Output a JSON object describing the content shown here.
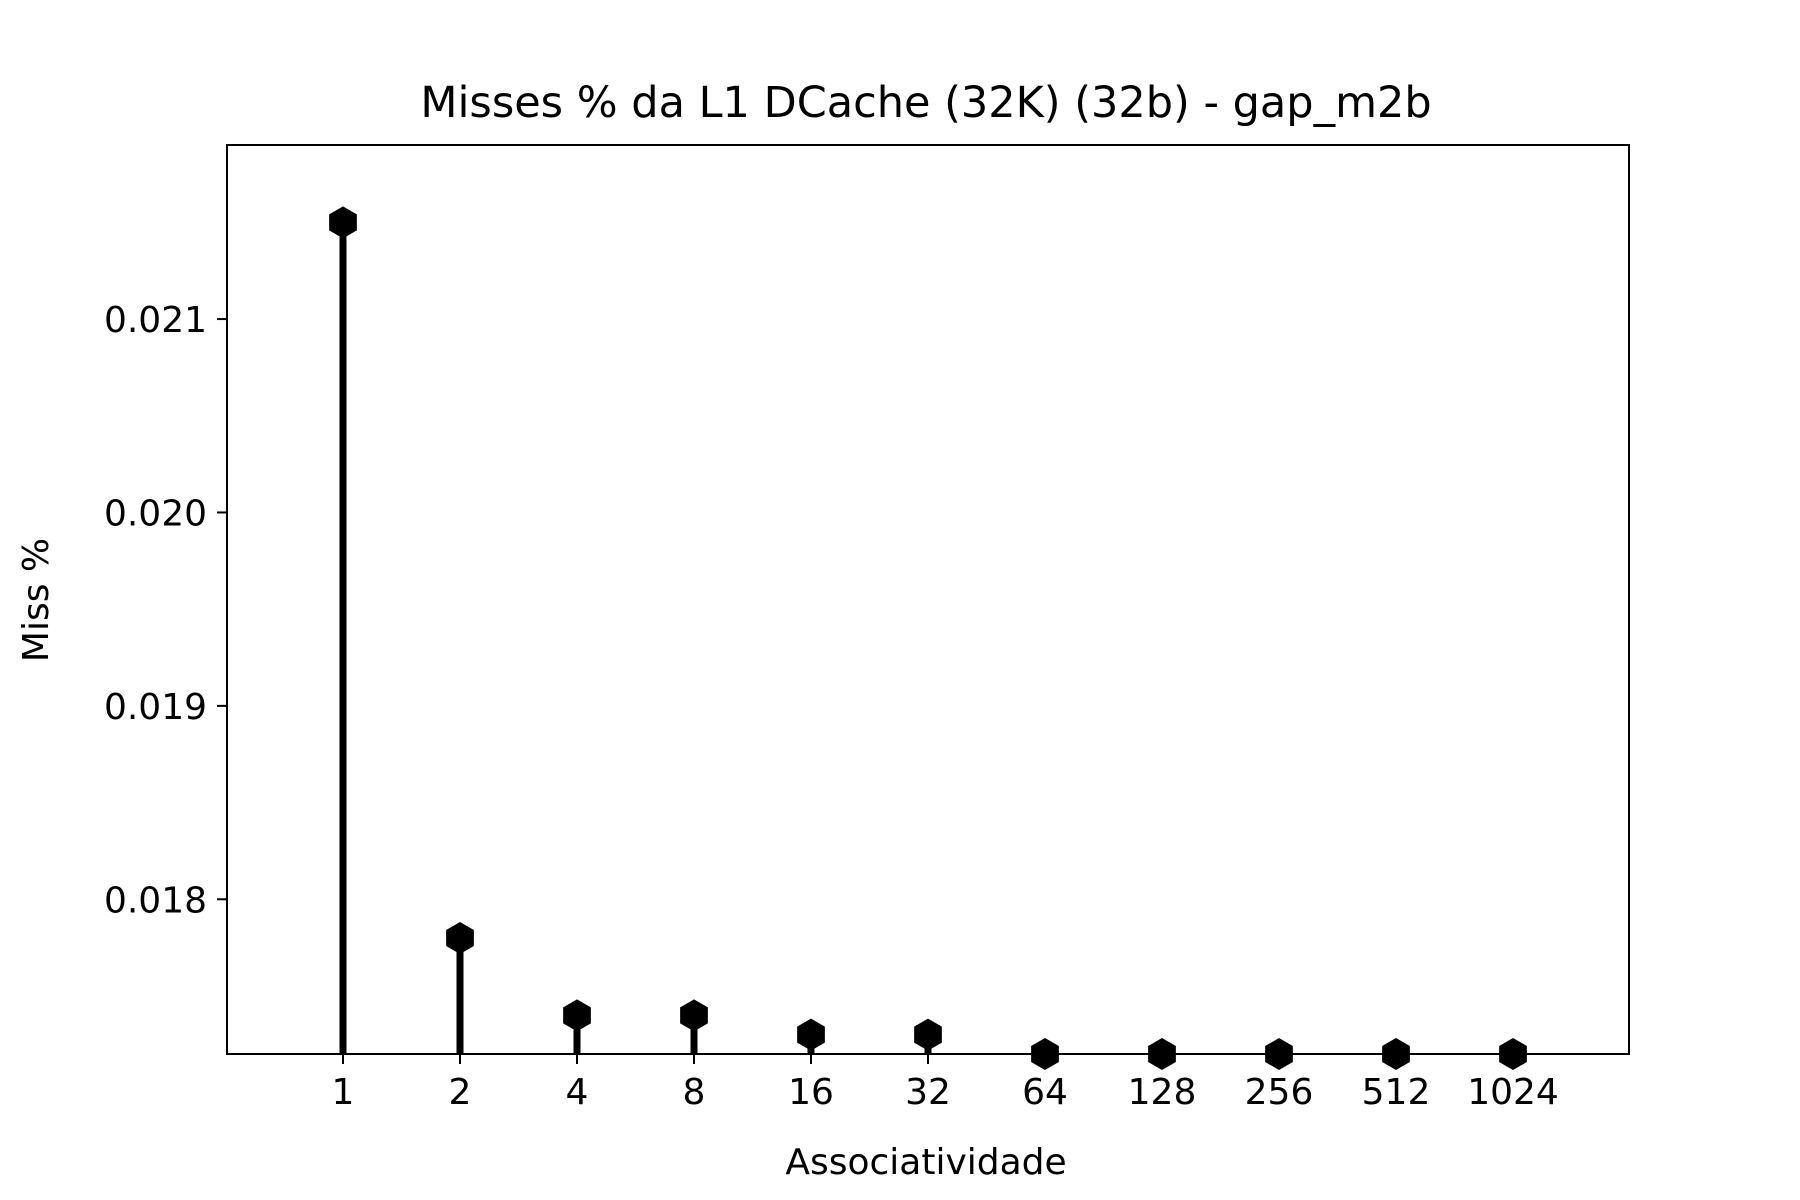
{
  "chart_data": {
    "type": "stem",
    "title": "Misses % da L1 DCache (32K) (32b) - gap_m2b",
    "xlabel": "Associatividade",
    "ylabel": "Miss %",
    "categories": [
      "1",
      "2",
      "4",
      "8",
      "16",
      "32",
      "64",
      "128",
      "256",
      "512",
      "1024"
    ],
    "values": [
      0.0215,
      0.0178,
      0.0174,
      0.0174,
      0.0173,
      0.0173,
      0.0172,
      0.0172,
      0.0172,
      0.0172,
      0.0172
    ],
    "ylim": [
      0.0172,
      0.0219
    ],
    "yticks": [
      0.018,
      0.019,
      0.02,
      0.021
    ],
    "ytick_labels": [
      "0.018",
      "0.019",
      "0.020",
      "0.021"
    ],
    "marker": "hexagon",
    "grid": false,
    "colors": {
      "stem": "#000000",
      "marker": "#000000",
      "axes": "#000000",
      "background": "#ffffff"
    }
  }
}
